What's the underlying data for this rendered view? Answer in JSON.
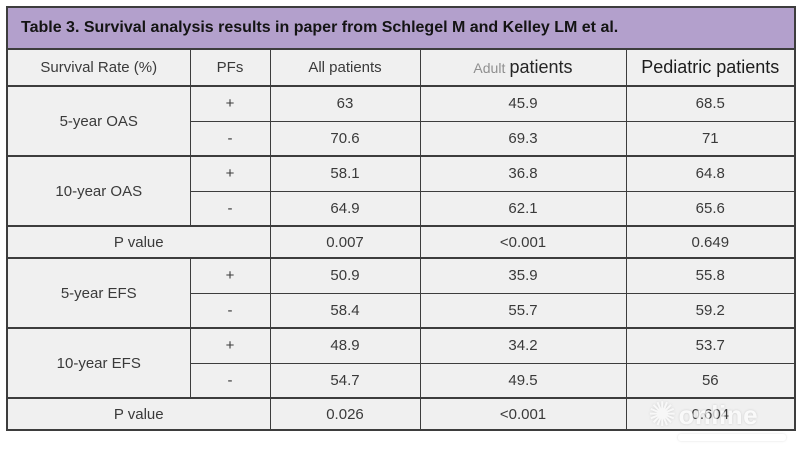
{
  "title": "Table 3. Survival analysis results in paper from Schlegel M and Kelley LM et al.",
  "columns": [
    "Survival Rate (%)",
    "PFs",
    "All patients",
    "Adult patients",
    "Pediatric patients"
  ],
  "adult_header": {
    "light": "Adult",
    "strong": "patients"
  },
  "groups": [
    {
      "label": "5-year OAS",
      "rows": [
        {
          "pf": "+",
          "values": [
            "63",
            "45.9",
            "68.5"
          ]
        },
        {
          "pf": "-",
          "values": [
            "70.6",
            "69.3",
            "71"
          ]
        }
      ]
    },
    {
      "label": "10-year OAS",
      "rows": [
        {
          "pf": "+",
          "values": [
            "58.1",
            "36.8",
            "64.8"
          ]
        },
        {
          "pf": "-",
          "values": [
            "64.9",
            "62.1",
            "65.6"
          ]
        }
      ]
    },
    {
      "label": "5-year EFS",
      "rows": [
        {
          "pf": "+",
          "values": [
            "50.9",
            "35.9",
            "55.8"
          ]
        },
        {
          "pf": "-",
          "values": [
            "58.4",
            "55.7",
            "59.2"
          ]
        }
      ]
    },
    {
      "label": "10-year EFS",
      "rows": [
        {
          "pf": "+",
          "values": [
            "48.9",
            "34.2",
            "53.7"
          ]
        },
        {
          "pf": "-",
          "values": [
            "54.7",
            "49.5",
            "56"
          ]
        }
      ]
    }
  ],
  "p_rows": [
    {
      "label": "P value",
      "values": [
        "0.007",
        "<0.001",
        "0.649"
      ]
    },
    {
      "label": "P value",
      "values": [
        "0.026",
        "<0.001",
        "0.604"
      ]
    }
  ],
  "watermark": {
    "text": "online",
    "gear_icon": "✺"
  },
  "colors": {
    "title_bg": "#b3a0cc",
    "cell_bg": "#f0f0f0",
    "border": "#3d3d3d",
    "text": "#3a3a3a"
  },
  "chart_data": {
    "type": "table",
    "title": "Table 3. Survival analysis results in paper from Schlegel M and Kelley LM et al.",
    "columns": [
      "Survival Rate (%)",
      "PFs",
      "All patients",
      "Adult patients",
      "Pediatric patients"
    ],
    "rows": [
      [
        "5-year OAS",
        "+",
        "63",
        "45.9",
        "68.5"
      ],
      [
        "5-year OAS",
        "-",
        "70.6",
        "69.3",
        "71"
      ],
      [
        "10-year OAS",
        "+",
        "58.1",
        "36.8",
        "64.8"
      ],
      [
        "10-year OAS",
        "-",
        "64.9",
        "62.1",
        "65.6"
      ],
      [
        "P value",
        "",
        "0.007",
        "<0.001",
        "0.649"
      ],
      [
        "5-year EFS",
        "+",
        "50.9",
        "35.9",
        "55.8"
      ],
      [
        "5-year EFS",
        "-",
        "58.4",
        "55.7",
        "59.2"
      ],
      [
        "10-year EFS",
        "+",
        "48.9",
        "34.2",
        "53.7"
      ],
      [
        "10-year EFS",
        "-",
        "54.7",
        "49.5",
        "56"
      ],
      [
        "P value",
        "",
        "0.026",
        "<0.001",
        "0.604"
      ]
    ]
  }
}
